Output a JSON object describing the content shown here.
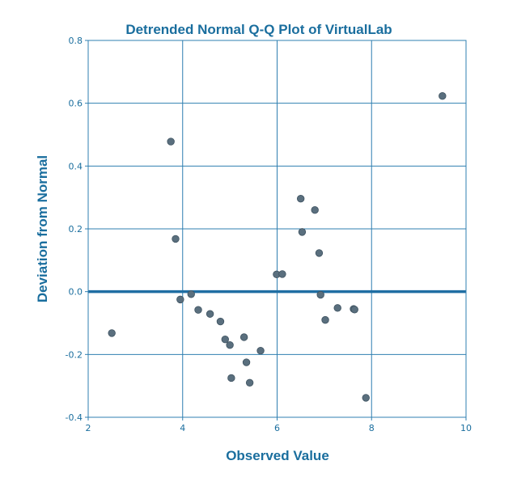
{
  "chart_data": {
    "type": "scatter",
    "title": "Detrended Normal Q-Q Plot of VirtualLab",
    "xlabel": "Observed Value",
    "ylabel": "Deviation from Normal",
    "xlim": [
      2,
      10
    ],
    "ylim": [
      -0.4,
      0.8
    ],
    "x_ticks": [
      2,
      4,
      6,
      8,
      10
    ],
    "x_tick_labels": [
      "2",
      "4",
      "6",
      "8",
      "10"
    ],
    "y_ticks": [
      -0.4,
      -0.2,
      0.0,
      0.2,
      0.4,
      0.6,
      0.8
    ],
    "y_tick_labels": [
      "-0.4",
      "-0.2",
      "0.0",
      "0.2",
      "0.4",
      "0.6",
      "0.8"
    ],
    "grid": true,
    "reference_line_y": 0.0,
    "points": [
      {
        "x": 2.5,
        "y": -0.132
      },
      {
        "x": 3.75,
        "y": 0.478
      },
      {
        "x": 3.85,
        "y": 0.168
      },
      {
        "x": 3.95,
        "y": -0.025
      },
      {
        "x": 4.18,
        "y": -0.008
      },
      {
        "x": 4.33,
        "y": -0.058
      },
      {
        "x": 4.58,
        "y": -0.071
      },
      {
        "x": 4.8,
        "y": -0.095
      },
      {
        "x": 4.9,
        "y": -0.152
      },
      {
        "x": 5.0,
        "y": -0.17
      },
      {
        "x": 5.03,
        "y": -0.275
      },
      {
        "x": 5.3,
        "y": -0.145
      },
      {
        "x": 5.35,
        "y": -0.225
      },
      {
        "x": 5.42,
        "y": -0.29
      },
      {
        "x": 5.65,
        "y": -0.188
      },
      {
        "x": 5.99,
        "y": 0.055
      },
      {
        "x": 6.11,
        "y": 0.056
      },
      {
        "x": 6.5,
        "y": 0.296
      },
      {
        "x": 6.53,
        "y": 0.19
      },
      {
        "x": 6.8,
        "y": 0.26
      },
      {
        "x": 6.89,
        "y": 0.123
      },
      {
        "x": 6.92,
        "y": -0.01
      },
      {
        "x": 7.02,
        "y": -0.09
      },
      {
        "x": 7.28,
        "y": -0.052
      },
      {
        "x": 7.62,
        "y": -0.055
      },
      {
        "x": 7.64,
        "y": -0.057
      },
      {
        "x": 7.88,
        "y": -0.338
      },
      {
        "x": 9.5,
        "y": 0.623
      }
    ]
  },
  "colors": {
    "text": "#1a6e9e",
    "grid": "#2f7fb0",
    "reference_line": "#1f6ea3",
    "point_fill": "#5a6f7e",
    "point_stroke": "#3e5260"
  }
}
